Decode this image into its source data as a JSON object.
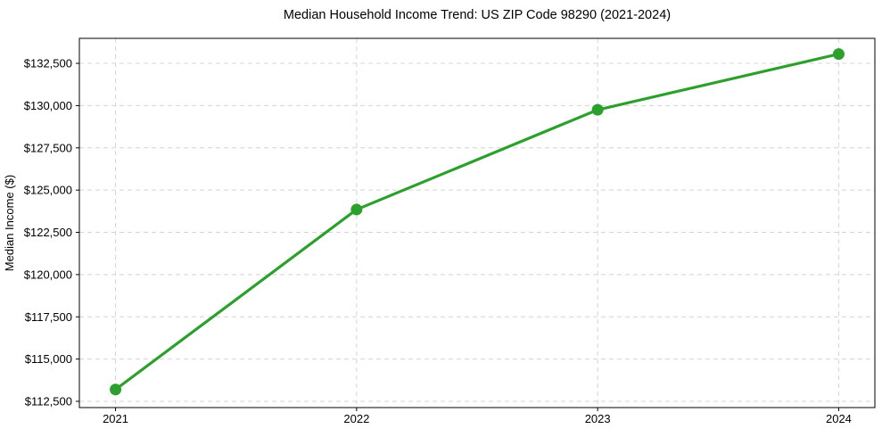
{
  "chart_data": {
    "type": "line",
    "title": "Median Household Income Trend: US ZIP Code 98290 (2021-2024)",
    "xlabel": "",
    "ylabel": "Median Income ($)",
    "x": [
      2021,
      2022,
      2023,
      2024
    ],
    "x_tick_labels": [
      "2021",
      "2022",
      "2023",
      "2024"
    ],
    "values": [
      113200,
      123850,
      129750,
      133050
    ],
    "y_ticks": [
      112500,
      115000,
      117500,
      120000,
      122500,
      125000,
      127500,
      130000,
      132500
    ],
    "y_tick_labels": [
      "$112,500",
      "$115,000",
      "$117,500",
      "$120,000",
      "$122,500",
      "$125,000",
      "$127,500",
      "$130,000",
      "$132,500"
    ],
    "xlim": [
      2020.85,
      2024.15
    ],
    "ylim": [
      112130,
      133980
    ],
    "grid": true,
    "grid_line_style": "dashed",
    "legend": "none",
    "marker": "circle",
    "colors": {
      "line": "#2ca02c",
      "marker": "#2ca02c",
      "grid": "#d4d4d4",
      "spine": "#000000",
      "tick": "#000000",
      "text": "#000000",
      "background": "#ffffff"
    }
  }
}
